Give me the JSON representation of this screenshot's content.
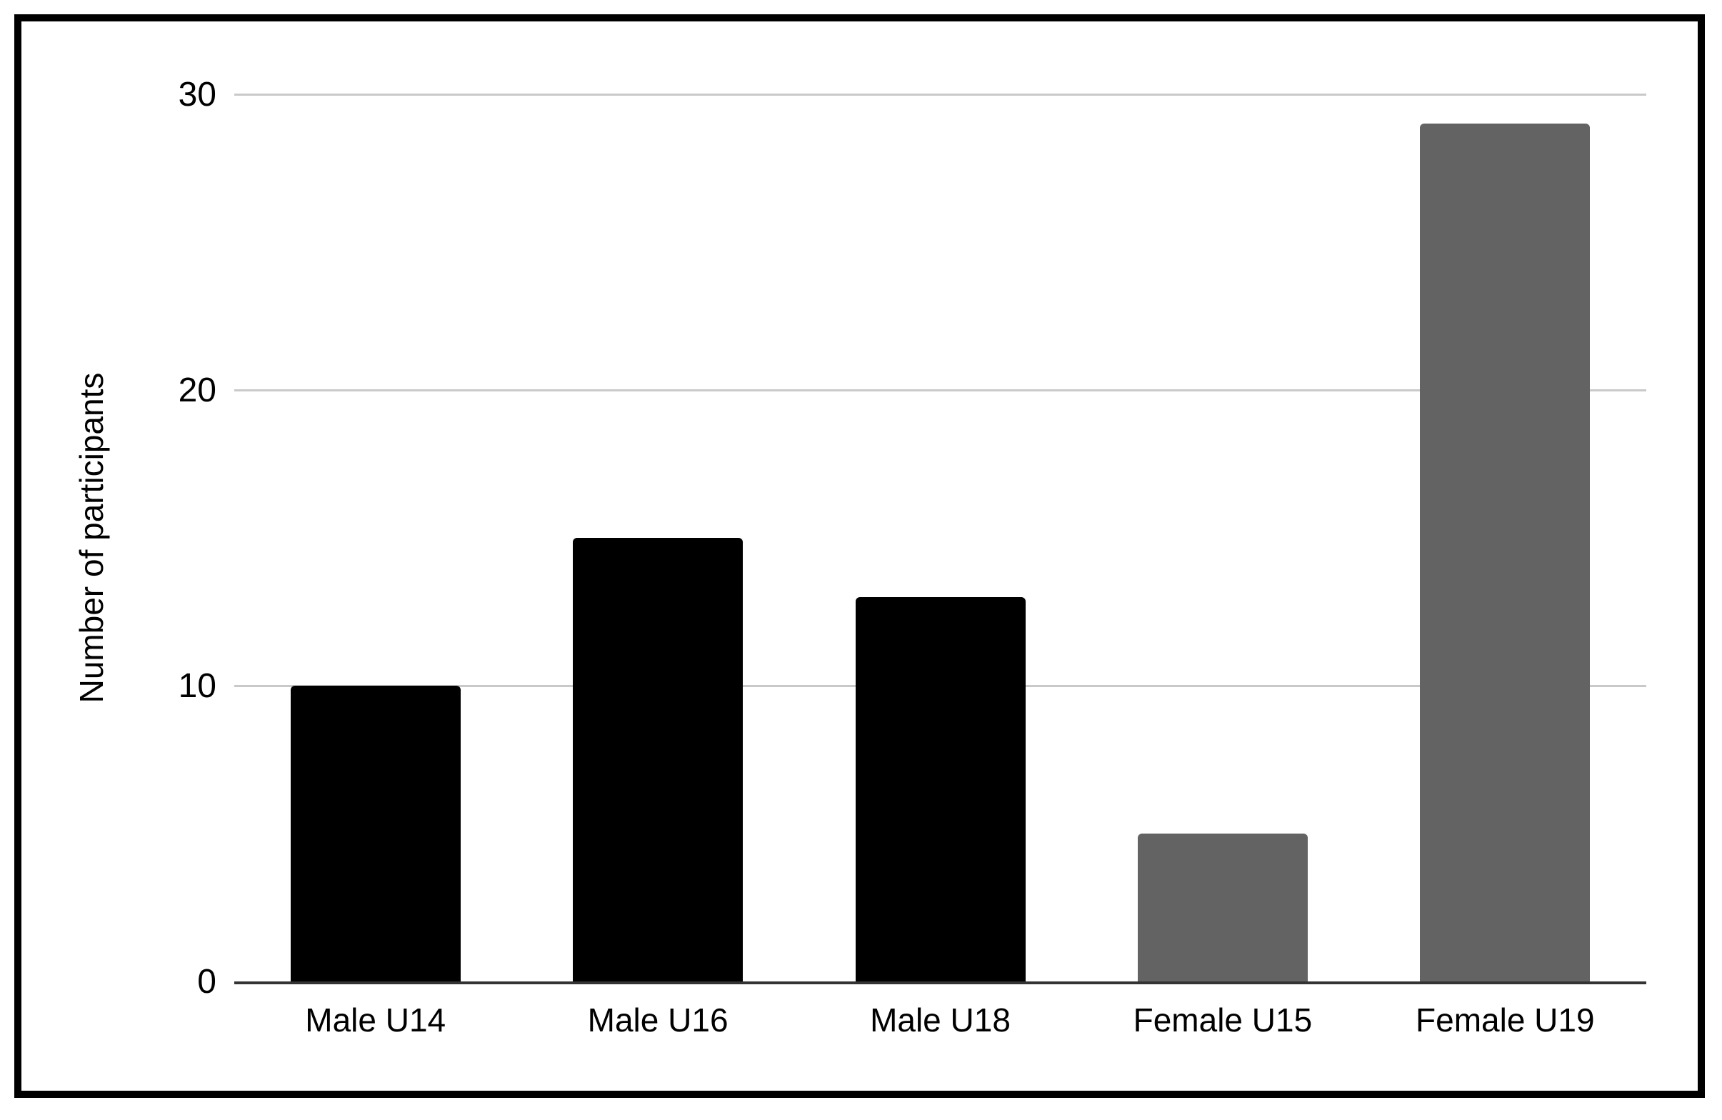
{
  "chart_data": {
    "type": "bar",
    "title": "",
    "categories": [
      "Male U14",
      "Male U16",
      "Male U18",
      "Female U15",
      "Female U19"
    ],
    "values": [
      10,
      15,
      13,
      5,
      29
    ],
    "bar_colors": [
      "#000000",
      "#000000",
      "#000000",
      "#636363",
      "#636363"
    ],
    "xlabel": "",
    "ylabel": "Number of participants",
    "ylim": [
      0,
      30
    ],
    "yticks": [
      0,
      10,
      20,
      30
    ],
    "grid": true,
    "legend_position": "none",
    "colors": {
      "male_bar": "#000000",
      "female_bar": "#636363",
      "gridline": "#c9c9c9",
      "axis_line": "#333333",
      "frame_border": "#000000",
      "background": "#ffffff",
      "text": "#000000"
    }
  }
}
